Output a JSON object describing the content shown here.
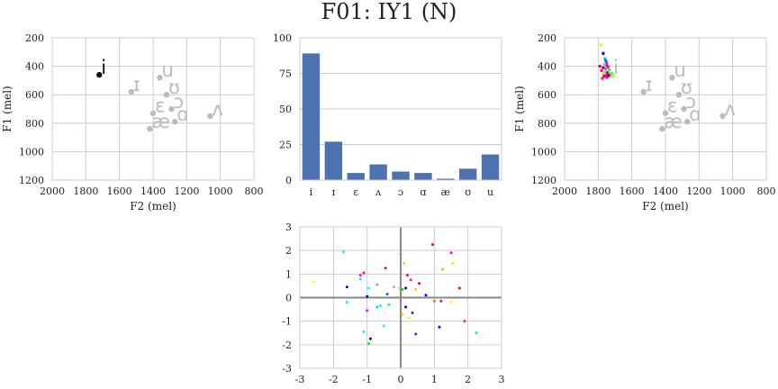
{
  "chart_title": "F01: IY1 (N)",
  "colors": {
    "grid": "#cccccc",
    "frame": "#cccccc",
    "bar": "#4c72b0",
    "vowel": "#bbbbbb",
    "highlight": "#111111",
    "zero_line": "#888888"
  },
  "chart_data": [
    {
      "type": "scatter",
      "xlabel": "F2 (mel)",
      "ylabel": "F1 (mel)",
      "xlim": [
        2000,
        800
      ],
      "ylim": [
        1200,
        200
      ],
      "x_ticks": [
        2000,
        1800,
        1600,
        1400,
        1200,
        1000,
        800
      ],
      "y_ticks": [
        200,
        400,
        600,
        800,
        1000,
        1200
      ],
      "grid": true,
      "vowels": [
        {
          "symbol": "i",
          "f2": 1720,
          "f1": 460,
          "highlight": true
        },
        {
          "symbol": "ɪ",
          "f2": 1530,
          "f1": 580
        },
        {
          "symbol": "u",
          "f2": 1360,
          "f1": 480
        },
        {
          "symbol": "ʊ",
          "f2": 1320,
          "f1": 600
        },
        {
          "symbol": "ɔ",
          "f2": 1290,
          "f1": 700
        },
        {
          "symbol": "ɛ",
          "f2": 1400,
          "f1": 730
        },
        {
          "symbol": "ɑ",
          "f2": 1270,
          "f1": 790
        },
        {
          "symbol": "æ",
          "f2": 1420,
          "f1": 840
        },
        {
          "symbol": "ʌ",
          "f2": 1060,
          "f1": 750
        }
      ]
    },
    {
      "type": "bar",
      "categories": [
        "i",
        "ɪ",
        "ɛ",
        "ʌ",
        "ɔ",
        "ɑ",
        "æ",
        "ʊ",
        "u"
      ],
      "values": [
        89,
        27,
        5,
        11,
        6,
        5,
        1,
        8,
        18
      ],
      "ylim": [
        0,
        100
      ],
      "y_ticks": [
        0,
        25,
        50,
        75,
        100
      ],
      "grid": true
    },
    {
      "type": "scatter",
      "xlabel": "F2 (mel)",
      "ylabel": "F1 (mel)",
      "xlim": [
        2000,
        800
      ],
      "ylim": [
        1200,
        200
      ],
      "x_ticks": [
        2000,
        1800,
        1600,
        1400,
        1200,
        1000,
        800
      ],
      "y_ticks": [
        200,
        400,
        600,
        800,
        1000,
        1200
      ],
      "grid": true,
      "vowels": [
        {
          "symbol": "i",
          "f2": 1720,
          "f1": 460
        },
        {
          "symbol": "ɪ",
          "f2": 1530,
          "f1": 580
        },
        {
          "symbol": "u",
          "f2": 1360,
          "f1": 480
        },
        {
          "symbol": "ʊ",
          "f2": 1320,
          "f1": 600
        },
        {
          "symbol": "ɔ",
          "f2": 1290,
          "f1": 700
        },
        {
          "symbol": "ɛ",
          "f2": 1400,
          "f1": 730
        },
        {
          "symbol": "ɑ",
          "f2": 1270,
          "f1": 790
        },
        {
          "symbol": "æ",
          "f2": 1420,
          "f1": 840
        },
        {
          "symbol": "ʌ",
          "f2": 1060,
          "f1": 750
        }
      ],
      "tokens": [
        {
          "f2": 1785,
          "f1": 250,
          "color": "#ccff00"
        },
        {
          "f2": 1770,
          "f1": 310,
          "color": "#0000ff"
        },
        {
          "f2": 1760,
          "f1": 345,
          "color": "#00ccff"
        },
        {
          "f2": 1755,
          "f1": 360,
          "color": "#0066ff"
        },
        {
          "f2": 1750,
          "f1": 375,
          "color": "#ff00aa"
        },
        {
          "f2": 1762,
          "f1": 385,
          "color": "#00ffcc"
        },
        {
          "f2": 1748,
          "f1": 395,
          "color": "#ff0000"
        },
        {
          "f2": 1790,
          "f1": 400,
          "color": "#ff0000"
        },
        {
          "f2": 1740,
          "f1": 405,
          "color": "#ff00ff"
        },
        {
          "f2": 1770,
          "f1": 410,
          "color": "#6600ff"
        },
        {
          "f2": 1755,
          "f1": 418,
          "color": "#ff6600"
        },
        {
          "f2": 1735,
          "f1": 425,
          "color": "#00ff66"
        },
        {
          "f2": 1780,
          "f1": 430,
          "color": "#ff0066"
        },
        {
          "f2": 1760,
          "f1": 438,
          "color": "#00ffff"
        },
        {
          "f2": 1745,
          "f1": 445,
          "color": "#ff0000"
        },
        {
          "f2": 1725,
          "f1": 450,
          "color": "#66ff00"
        },
        {
          "f2": 1770,
          "f1": 455,
          "color": "#ffcc00"
        },
        {
          "f2": 1752,
          "f1": 460,
          "color": "#ff00ff"
        },
        {
          "f2": 1738,
          "f1": 465,
          "color": "#0000ff"
        },
        {
          "f2": 1765,
          "f1": 470,
          "color": "#ff0000"
        },
        {
          "f2": 1710,
          "f1": 472,
          "color": "#ccff00"
        },
        {
          "f2": 1748,
          "f1": 478,
          "color": "#ff0066"
        },
        {
          "f2": 1775,
          "f1": 485,
          "color": "#ff00aa"
        }
      ]
    },
    {
      "type": "scatter",
      "xlim": [
        -3,
        3
      ],
      "ylim": [
        -3,
        3
      ],
      "x_ticks": [
        -3,
        -2,
        -1,
        0,
        1,
        2,
        3
      ],
      "y_ticks": [
        -3,
        -2,
        -1,
        0,
        1,
        2,
        3
      ],
      "grid": true,
      "points": [
        {
          "x": -2.6,
          "y": 0.65,
          "color": "#ffff00"
        },
        {
          "x": -1.7,
          "y": 1.95,
          "color": "#00ffcc"
        },
        {
          "x": -1.6,
          "y": 0.45,
          "color": "#0000ff"
        },
        {
          "x": -1.6,
          "y": -0.2,
          "color": "#00ff99"
        },
        {
          "x": -1.2,
          "y": 0.95,
          "color": "#ff00ff"
        },
        {
          "x": -1.1,
          "y": 1.05,
          "color": "#ff00aa"
        },
        {
          "x": -1.2,
          "y": 0.8,
          "color": "#00ffcc"
        },
        {
          "x": -1.0,
          "y": 0.05,
          "color": "#0000ff"
        },
        {
          "x": -1.0,
          "y": -0.55,
          "color": "#ff00ff"
        },
        {
          "x": -0.95,
          "y": 0.4,
          "color": "#00ffff"
        },
        {
          "x": -1.1,
          "y": -1.45,
          "color": "#00ffcc"
        },
        {
          "x": -0.9,
          "y": -1.75,
          "color": "#0000ff"
        },
        {
          "x": -0.95,
          "y": -1.95,
          "color": "#00ff00"
        },
        {
          "x": -0.7,
          "y": -0.4,
          "color": "#00ccff"
        },
        {
          "x": -0.6,
          "y": -0.35,
          "color": "#00ffcc"
        },
        {
          "x": -0.5,
          "y": -1.2,
          "color": "#00ffff"
        },
        {
          "x": -0.45,
          "y": 1.25,
          "color": "#ff0066"
        },
        {
          "x": -0.35,
          "y": -0.3,
          "color": "#00ff66"
        },
        {
          "x": -0.4,
          "y": 0.15,
          "color": "#0066ff"
        },
        {
          "x": -0.2,
          "y": 0.45,
          "color": "#ff9966"
        },
        {
          "x": -0.05,
          "y": 0.4,
          "color": "#cccccc"
        },
        {
          "x": 0.0,
          "y": 1.85,
          "color": "#ff6666"
        },
        {
          "x": 0.05,
          "y": 0.35,
          "color": "#33cc00"
        },
        {
          "x": 0.1,
          "y": 1.45,
          "color": "#ffcc00"
        },
        {
          "x": 0.15,
          "y": 0.4,
          "color": "#0000ff"
        },
        {
          "x": 0.2,
          "y": 0.95,
          "color": "#ff0066"
        },
        {
          "x": 0.15,
          "y": -0.4,
          "color": "#0000ff"
        },
        {
          "x": 0.3,
          "y": 0.75,
          "color": "#ff00ff"
        },
        {
          "x": 0.25,
          "y": -0.85,
          "color": "#ffff00"
        },
        {
          "x": 0.35,
          "y": -0.65,
          "color": "#6600ff"
        },
        {
          "x": 0.45,
          "y": -1.55,
          "color": "#9900ff"
        },
        {
          "x": 0.45,
          "y": 0.35,
          "color": "#ffcc00"
        },
        {
          "x": 0.75,
          "y": 0.1,
          "color": "#0000ff"
        },
        {
          "x": 0.95,
          "y": 2.25,
          "color": "#ff0000"
        },
        {
          "x": 1.0,
          "y": -0.15,
          "color": "#ff6600"
        },
        {
          "x": 1.15,
          "y": -1.25,
          "color": "#0000ff"
        },
        {
          "x": 1.2,
          "y": -0.15,
          "color": "#ff0066"
        },
        {
          "x": 1.25,
          "y": 1.2,
          "color": "#66ff00"
        },
        {
          "x": 1.5,
          "y": -0.2,
          "color": "#ffff00"
        },
        {
          "x": 1.5,
          "y": 1.9,
          "color": "#ff00ff"
        },
        {
          "x": 1.55,
          "y": 1.45,
          "color": "#ccff00"
        },
        {
          "x": 1.75,
          "y": 0.4,
          "color": "#ff0000"
        },
        {
          "x": 1.9,
          "y": -1.0,
          "color": "#ff3300"
        },
        {
          "x": 2.25,
          "y": -1.5,
          "color": "#00ff66"
        },
        {
          "x": 0.05,
          "y": -0.7,
          "color": "#ffcc00"
        },
        {
          "x": -0.7,
          "y": 0.55,
          "color": "#ff66cc"
        },
        {
          "x": 0.55,
          "y": 0.6,
          "color": "#ff0000"
        }
      ]
    }
  ]
}
